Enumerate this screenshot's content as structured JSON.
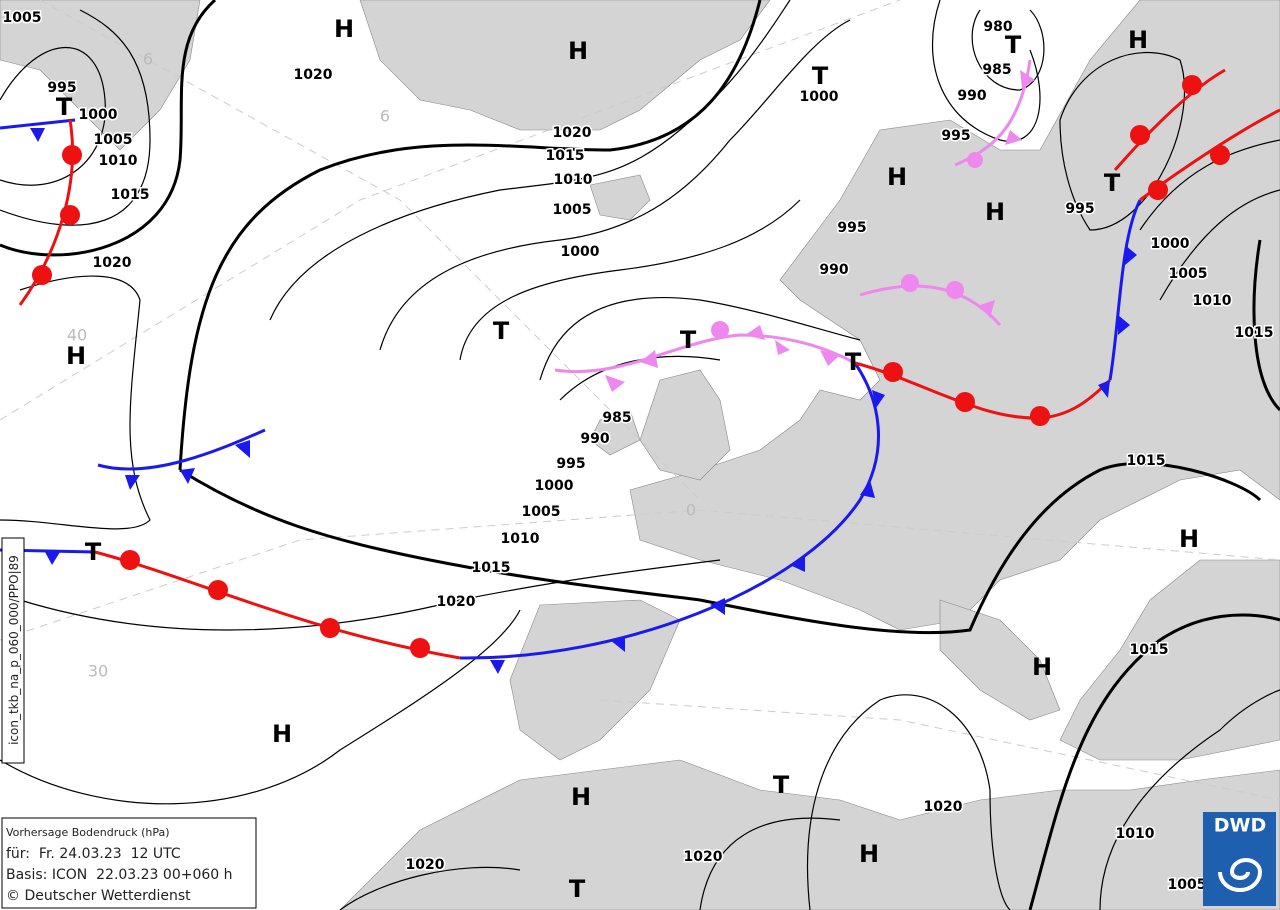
{
  "isobar_labels": [
    1005,
    995,
    1000,
    1005,
    1010,
    1015,
    1020,
    1020,
    1020,
    1015,
    1010,
    1005,
    1000,
    1000,
    980,
    985,
    990,
    995,
    995,
    990,
    995,
    1000,
    1005,
    1010,
    1015,
    985,
    990,
    995,
    1000,
    1005,
    1010,
    1015,
    1020,
    1015,
    1015,
    1020,
    1020,
    1020,
    1010,
    1005
  ],
  "pressure_systems": [
    "T",
    "H",
    "H",
    "T",
    "T",
    "H",
    "H",
    "H",
    "T",
    "T",
    "T",
    "T",
    "H",
    "T",
    "H",
    "H",
    "H",
    "H",
    "T",
    "H",
    "T"
  ],
  "grid_labels": [
    "6",
    "6",
    "40",
    "30",
    "0"
  ],
  "side_label": "icon_tkb_na_p_060_000/PPO|89",
  "legend": {
    "title": "Vorhersage Bodendruck (hPa)",
    "valid": "für:  Fr. 24.03.23  12 UTC",
    "basis": "Basis: ICON  22.03.23 00+060 h",
    "copyright": "© Deutscher Wetterdienst"
  },
  "logo": "DWD"
}
